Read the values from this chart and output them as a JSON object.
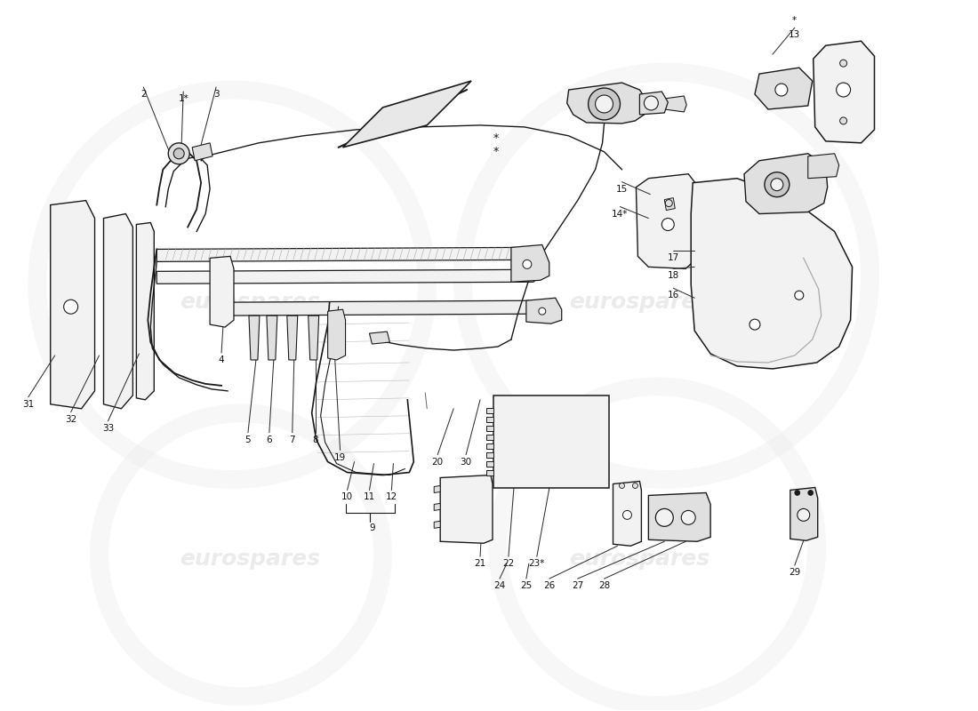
{
  "bg_color": "#ffffff",
  "line_color": "#1a1a1a",
  "fill_light": "#f2f2f2",
  "fill_mid": "#e0e0e0",
  "fill_dark": "#c8c8c8",
  "watermark_text": "eurospares",
  "watermark_color": "#d8d8d8",
  "watermark_alpha": 0.5,
  "label_fontsize": 7.5,
  "wm_fontsize": 18,
  "arrow_color": "#e8e8e8",
  "arrow_edge": "#1a1a1a",
  "fig_w": 11.0,
  "fig_h": 8.0,
  "dpi": 100
}
